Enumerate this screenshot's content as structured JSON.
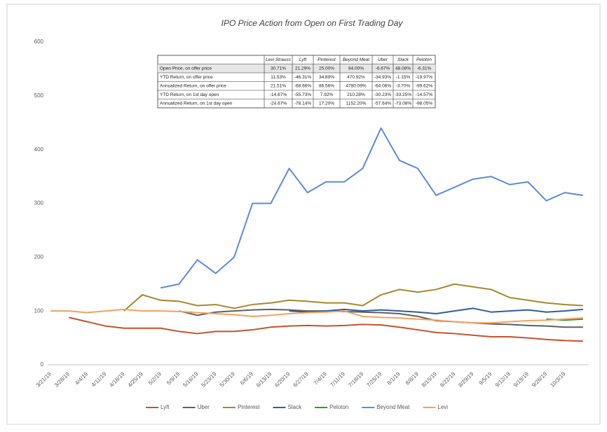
{
  "chart_data": {
    "type": "line",
    "title": "IPO Price Action from Open on First Trading Day",
    "categories": [
      "3/21/19",
      "3/28/19",
      "4/4/19",
      "4/11/19",
      "4/18/19",
      "4/25/19",
      "5/2/19",
      "5/9/19",
      "5/16/19",
      "5/23/19",
      "5/30/19",
      "6/6/19",
      "6/13/19",
      "6/20/19",
      "6/27/19",
      "7/4/19",
      "7/11/19",
      "7/18/19",
      "7/25/19",
      "8/1/19",
      "8/8/19",
      "8/15/19",
      "8/22/19",
      "8/29/19",
      "9/5/19",
      "9/12/19",
      "9/19/19",
      "9/26/19",
      "10/3/19",
      null
    ],
    "ylim": [
      0,
      600
    ],
    "yticks": [
      0,
      100,
      200,
      300,
      400,
      500,
      600
    ],
    "grid": false,
    "legend": "bottom",
    "series": [
      {
        "name": "Lyft",
        "color": "#c4532b",
        "values": [
          null,
          88,
          80,
          72,
          68,
          68,
          68,
          62,
          58,
          62,
          62,
          65,
          70,
          72,
          73,
          72,
          73,
          75,
          74,
          70,
          65,
          60,
          58,
          55,
          52,
          52,
          50,
          47,
          45,
          44
        ]
      },
      {
        "name": "Uber",
        "color": "#5f5f5f",
        "values": [
          null,
          null,
          null,
          null,
          null,
          null,
          null,
          100,
          92,
          98,
          100,
          102,
          103,
          102,
          100,
          100,
          99,
          98,
          97,
          95,
          90,
          82,
          80,
          78,
          76,
          75,
          73,
          72,
          70,
          70
        ]
      },
      {
        "name": "Pinterest",
        "color": "#a8862a",
        "values": [
          null,
          null,
          null,
          null,
          100,
          130,
          120,
          118,
          110,
          112,
          105,
          112,
          115,
          120,
          118,
          115,
          115,
          110,
          130,
          140,
          135,
          140,
          150,
          145,
          140,
          125,
          120,
          115,
          112,
          110
        ]
      },
      {
        "name": "Slack",
        "color": "#2e5d9e",
        "values": [
          null,
          null,
          null,
          null,
          null,
          null,
          null,
          null,
          null,
          null,
          null,
          null,
          null,
          100,
          98,
          100,
          103,
          100,
          102,
          100,
          98,
          95,
          100,
          105,
          98,
          100,
          102,
          98,
          100,
          103
        ]
      },
      {
        "name": "Peloton",
        "color": "#3f8f3a",
        "values": [
          null,
          null,
          null,
          null,
          null,
          null,
          null,
          null,
          null,
          null,
          null,
          null,
          null,
          null,
          null,
          null,
          null,
          null,
          null,
          null,
          null,
          null,
          null,
          null,
          null,
          null,
          null,
          85,
          83,
          85
        ]
      },
      {
        "name": "Beyond Meat",
        "color": "#5b8bd9",
        "values": [
          null,
          null,
          null,
          null,
          null,
          null,
          143,
          150,
          195,
          170,
          200,
          300,
          300,
          365,
          320,
          340,
          340,
          365,
          440,
          380,
          365,
          315,
          330,
          345,
          350,
          335,
          340,
          305,
          320,
          315
        ]
      },
      {
        "name": "Levi",
        "color": "#f5a05a",
        "values": [
          100,
          100,
          97,
          100,
          103,
          100,
          100,
          99,
          97,
          95,
          93,
          90,
          92,
          95,
          97,
          98,
          100,
          90,
          88,
          87,
          85,
          83,
          80,
          78,
          78,
          80,
          82,
          83,
          85,
          87
        ]
      }
    ],
    "table": {
      "columns": [
        "Levi Strauss",
        "Lyft",
        "Pinterest",
        "Beyond Meat",
        "Uber",
        "Slack",
        "Peloton"
      ],
      "rows": [
        {
          "label": "Open Price, on offer price",
          "values": [
            "30.71%",
            "21.29%",
            "25.00%",
            "84.00%",
            "-6.67%",
            "48.08%",
            "-6.31%"
          ]
        },
        {
          "label": "YTD Return, on offer price",
          "values": [
            "11.53%",
            "-46.31%",
            "34.89%",
            "470.92%",
            "-34.93%",
            "-1.15%",
            "-19.97%"
          ]
        },
        {
          "label": "Annualized Return, on offer price",
          "values": [
            "21.51%",
            "-68.66%",
            "86.56%",
            "4780.09%",
            "-64.06%",
            "-3.70%",
            "-99.62%"
          ]
        },
        {
          "label": "YTD Return, on 1st day open",
          "values": [
            "-14.67%",
            "-55.73%",
            "7.92%",
            "210.28%",
            "-30.23%",
            "-33.25%",
            "-14.57%"
          ]
        },
        {
          "label": "Annualized Return, on 1st day open",
          "values": [
            "-24.67%",
            "-78.14%",
            "17.20%",
            "1152.20%",
            "-57.64%",
            "-73.08%",
            "-98.05%"
          ]
        }
      ]
    }
  }
}
